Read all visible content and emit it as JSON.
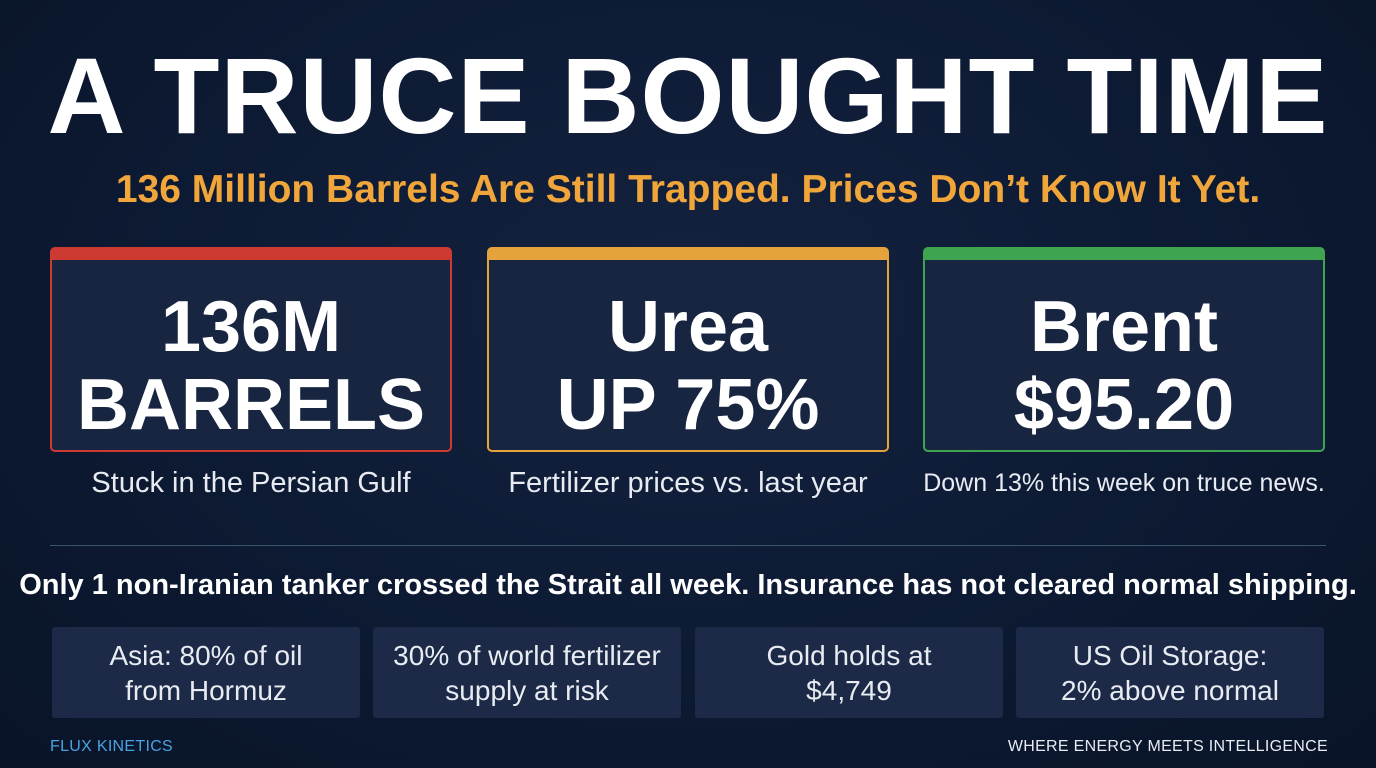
{
  "header": {
    "title": "A TRUCE BOUGHT TIME",
    "subtitle": "136 Million Barrels Are Still Trapped. Prices Don’t Know It Yet."
  },
  "cards": [
    {
      "line1": "136M",
      "line2": "BARRELS",
      "caption": "Stuck in the Persian Gulf",
      "accent": "#cc3a32"
    },
    {
      "line1": "Urea",
      "line2": "UP 75%",
      "caption": "Fertilizer prices vs. last year",
      "accent": "#e5a43b"
    },
    {
      "line1": "Brent",
      "line2": "$95.20",
      "caption": "Down 13% this week on truce news.",
      "accent": "#3fa44f"
    }
  ],
  "alert": "Only 1 non-Iranian tanker crossed the Strait all week. Insurance has not cleared normal shipping.",
  "facts": [
    {
      "line1": "Asia: 80% of oil",
      "line2": "from Hormuz"
    },
    {
      "line1": "30% of world fertilizer",
      "line2": "supply at risk"
    },
    {
      "line1": "Gold holds at",
      "line2": "$4,749"
    },
    {
      "line1": "US Oil Storage:",
      "line2": "2% above normal"
    }
  ],
  "footer": {
    "brand": "FLUX KINETICS",
    "tagline": "WHERE ENERGY MEETS INTELLIGENCE"
  },
  "colors": {
    "background": "#0d1a33",
    "subtitle": "#f0a63a",
    "brand": "#4aa3e0"
  }
}
